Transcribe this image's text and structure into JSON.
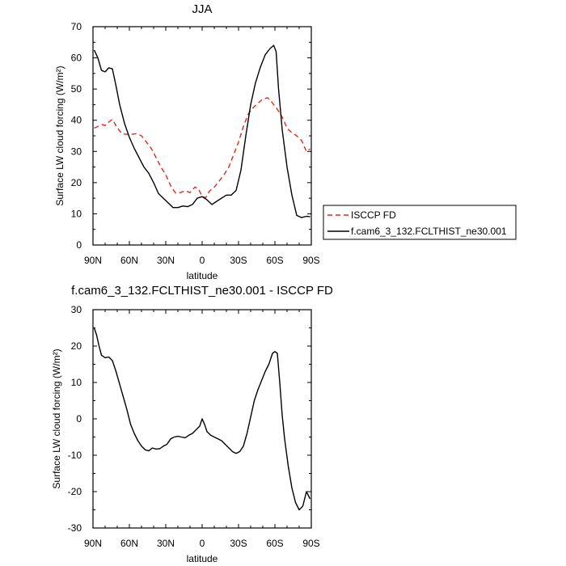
{
  "chart_data": [
    {
      "type": "line",
      "title": "JJA",
      "xlabel": "latitude",
      "ylabel": "Surface LW cloud forcing (W/m²)",
      "xlim": [
        90,
        -90
      ],
      "ylim": [
        0,
        70
      ],
      "x_tick_values": [
        90,
        60,
        30,
        0,
        -30,
        -60,
        -90
      ],
      "x_tick_labels": [
        "90N",
        "60N",
        "30N",
        "0",
        "30S",
        "60S",
        "90S"
      ],
      "y_tick_values": [
        0,
        10,
        20,
        30,
        40,
        50,
        60,
        70
      ],
      "y_tick_labels": [
        "0",
        "10",
        "20",
        "30",
        "40",
        "50",
        "60",
        "70"
      ],
      "legend_placement": "right",
      "series": [
        {
          "name": "ISCCP FD",
          "color": "#e8261b",
          "dash": "dashed",
          "x": [
            89,
            86,
            82,
            80,
            77,
            74,
            70,
            66,
            62,
            58,
            54,
            50,
            46,
            42,
            38,
            34,
            30,
            26,
            22,
            18,
            14,
            10,
            6,
            3,
            0,
            -3,
            -6,
            -10,
            -14,
            -18,
            -22,
            -26,
            -30,
            -34,
            -38,
            -42,
            -46,
            -50,
            -54,
            -56,
            -58,
            -62,
            -66,
            -70,
            -74,
            -78,
            -82,
            -86,
            -89
          ],
          "y": [
            37.5,
            38,
            38.6,
            38.3,
            39.4,
            40.3,
            37.6,
            35.6,
            35.5,
            35.5,
            35.7,
            35,
            33,
            31,
            28,
            25,
            22.5,
            19,
            16.7,
            16.8,
            17.4,
            16.8,
            18.6,
            18,
            15.5,
            15.2,
            17.3,
            18.5,
            20.5,
            22.5,
            25,
            29,
            33,
            38,
            42,
            44,
            45.5,
            46.8,
            47.2,
            46.5,
            45.5,
            43.5,
            41,
            37.5,
            36,
            35,
            33.5,
            30,
            30.8
          ]
        },
        {
          "name": "f.cam6_3_132.FCLTHIST_ne30.001",
          "color": "#000000",
          "dash": "solid",
          "x": [
            89,
            86,
            83,
            80,
            77,
            74,
            71,
            68,
            64,
            60,
            56,
            52,
            48,
            44,
            40,
            36,
            32,
            28,
            24,
            20,
            16,
            12,
            8,
            4,
            0,
            -4,
            -8,
            -12,
            -16,
            -20,
            -24,
            -28,
            -32,
            -36,
            -40,
            -44,
            -48,
            -52,
            -56,
            -59,
            -61,
            -63,
            -66,
            -70,
            -74,
            -78,
            -82,
            -86,
            -89
          ],
          "y": [
            62.5,
            60,
            56,
            55.5,
            56.8,
            56.5,
            51,
            45,
            39,
            34.5,
            31,
            28,
            25,
            23,
            20,
            16.5,
            15,
            13.5,
            12,
            12,
            12.5,
            12.3,
            13,
            15,
            15.5,
            14.5,
            13,
            14,
            15,
            16,
            16,
            17.5,
            24,
            35,
            45,
            52,
            57,
            61,
            63,
            64,
            62,
            50,
            37,
            25,
            16,
            9.5,
            8.8,
            9.2,
            9.1
          ]
        }
      ]
    },
    {
      "type": "line",
      "title": "f.cam6_3_132.FCLTHIST_ne30.001 - ISCCP FD",
      "xlabel": "latitude",
      "ylabel": "Surface LW cloud forcing (W/m²)",
      "xlim": [
        90,
        -90
      ],
      "ylim": [
        -30,
        30
      ],
      "x_tick_values": [
        90,
        60,
        30,
        0,
        -30,
        -60,
        -90
      ],
      "x_tick_labels": [
        "90N",
        "60N",
        "30N",
        "0",
        "30S",
        "60S",
        "90S"
      ],
      "y_tick_values": [
        -30,
        -20,
        -10,
        0,
        10,
        20,
        30
      ],
      "y_tick_labels": [
        "-30",
        "-20",
        "-10",
        "0",
        "10",
        "20",
        "30"
      ],
      "series": [
        {
          "color": "#000000",
          "dash": "solid",
          "x": [
            89,
            87,
            85,
            83,
            80,
            77,
            74,
            71,
            68,
            65,
            62,
            59,
            56,
            53,
            50,
            47,
            44,
            41,
            38,
            35,
            32,
            29,
            26,
            23,
            20,
            17,
            14,
            11,
            8,
            5,
            2,
            0,
            -2,
            -4,
            -7,
            -10,
            -13,
            -16,
            -19,
            -22,
            -25,
            -28,
            -31,
            -34,
            -37,
            -40,
            -43,
            -46,
            -49,
            -52,
            -55,
            -58,
            -60,
            -62,
            -64,
            -66,
            -68,
            -71,
            -74,
            -77,
            -80,
            -83,
            -86,
            -89
          ],
          "y": [
            25,
            23,
            20,
            17.5,
            16.8,
            17,
            16,
            13,
            9.5,
            6,
            2.5,
            -1.5,
            -4,
            -6,
            -7.5,
            -8.5,
            -8.8,
            -8,
            -8.3,
            -8.2,
            -7.5,
            -7,
            -5.5,
            -5,
            -4.8,
            -5,
            -5.2,
            -4.5,
            -4,
            -3,
            -2,
            0,
            -1.5,
            -3.5,
            -4.5,
            -5,
            -5.5,
            -6,
            -7,
            -8,
            -9,
            -9.5,
            -9,
            -7.5,
            -4,
            0.5,
            5,
            8,
            10.5,
            13,
            15,
            18,
            18.5,
            18,
            10,
            1,
            -5.5,
            -13,
            -19,
            -23,
            -25,
            -24,
            -20,
            -22
          ]
        }
      ]
    }
  ]
}
